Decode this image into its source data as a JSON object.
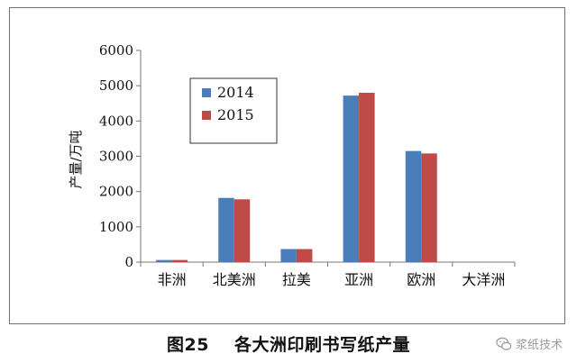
{
  "chart_data": {
    "type": "bar",
    "categories": [
      "非洲",
      "北美洲",
      "拉美",
      "亚洲",
      "欧洲",
      "大洋洲"
    ],
    "series": [
      {
        "name": "2014",
        "values": [
          60,
          1820,
          370,
          4720,
          3150,
          0
        ],
        "color": "#4a7ebb"
      },
      {
        "name": "2015",
        "values": [
          60,
          1780,
          370,
          4800,
          3080,
          0
        ],
        "color": "#be4b48"
      }
    ],
    "ylabel": "产量/万吨",
    "ylim": [
      0,
      6000
    ],
    "yticks": [
      0,
      1000,
      2000,
      3000,
      4000,
      5000,
      6000
    ],
    "grid": false,
    "legend_position": "top-left"
  },
  "caption": {
    "figure_number": "图25",
    "title": "各大洲印刷书写纸产量"
  },
  "watermark": {
    "icon": "wechat-icon",
    "text": "浆纸技术"
  }
}
